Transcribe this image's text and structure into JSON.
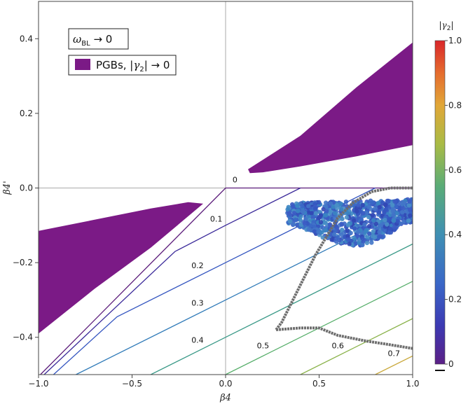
{
  "chart_data": {
    "type": "contour",
    "xlabel": "β4",
    "ylabel": "β4'",
    "xlim": [
      -1.0,
      1.0
    ],
    "ylim": [
      -0.5,
      0.5
    ],
    "x_ticks": [
      "−1.0",
      "−0.5",
      "0.0",
      "0.5",
      "1.0"
    ],
    "x_tick_values": [
      -1.0,
      -0.5,
      0.0,
      0.5,
      1.0
    ],
    "y_ticks": [
      "−0.4",
      "−0.2",
      "0.0",
      "0.2",
      "0.4"
    ],
    "y_tick_values": [
      -0.4,
      -0.2,
      0.0,
      0.2,
      0.4
    ],
    "legend": {
      "box_label": "ω_BL → 0",
      "box_label_text": "ω",
      "box_label_sub": "BL",
      "box_label_rest": " → 0",
      "fill_label": "PGBs, |γ2| → 0",
      "fill_label_pre": "PGBs, |",
      "fill_label_gamma": "γ",
      "fill_label_sub": "2",
      "fill_label_post": "| → 0",
      "placement": "top-left"
    },
    "colorbar": {
      "title": "|γ2|",
      "title_gamma": "γ",
      "title_sub": "2",
      "range": [
        0,
        1
      ],
      "ticks": [
        "0",
        "0.2",
        "0.4",
        "0.6",
        "0.8",
        "1.0"
      ],
      "tick_values": [
        0,
        0.2,
        0.4,
        0.6,
        0.8,
        1.0
      ]
    },
    "contours": [
      {
        "level": "0",
        "value": 0.0,
        "color": "#5a1a7a",
        "points": [
          [
            -0.99,
            -0.5
          ],
          [
            -0.0,
            0.0
          ],
          [
            0.4,
            0.0
          ],
          [
            1.0,
            0.0
          ]
        ],
        "label_at": [
          0.05,
          0.015
        ]
      },
      {
        "level": "0.1",
        "value": 0.1,
        "color": "#3b2a9a",
        "points": [
          [
            -0.97,
            -0.5
          ],
          [
            -0.27,
            -0.17
          ],
          [
            0.0,
            -0.1
          ],
          [
            0.4,
            0.0
          ]
        ],
        "label_at": [
          -0.05,
          -0.09
        ]
      },
      {
        "level": "0.2",
        "value": 0.2,
        "color": "#3556c0",
        "points": [
          [
            -0.92,
            -0.5
          ],
          [
            -0.58,
            -0.345
          ],
          [
            0.0,
            -0.2
          ],
          [
            0.8,
            0.0
          ]
        ],
        "label_at": [
          -0.15,
          -0.215
        ]
      },
      {
        "level": "0.3",
        "value": 0.3,
        "color": "#2f7ab8",
        "points": [
          [
            -0.8,
            -0.5
          ],
          [
            0.0,
            -0.3
          ],
          [
            1.0,
            -0.05
          ]
        ],
        "label_at": [
          -0.15,
          -0.315
        ]
      },
      {
        "level": "0.4",
        "value": 0.4,
        "color": "#3b9a88",
        "points": [
          [
            -0.4,
            -0.5
          ],
          [
            0.0,
            -0.4
          ],
          [
            1.0,
            -0.15
          ]
        ],
        "label_at": [
          -0.15,
          -0.415
        ]
      },
      {
        "level": "0.5",
        "value": 0.5,
        "color": "#56ae6a",
        "points": [
          [
            0.0,
            -0.5
          ],
          [
            1.0,
            -0.25
          ]
        ],
        "label_at": [
          0.2,
          -0.43
        ]
      },
      {
        "level": "0.6",
        "value": 0.6,
        "color": "#8ab24a",
        "points": [
          [
            0.4,
            -0.5
          ],
          [
            1.0,
            -0.35
          ]
        ],
        "label_at": [
          0.6,
          -0.43
        ]
      },
      {
        "level": "0.7",
        "value": 0.7,
        "color": "#c9a83a",
        "points": [
          [
            0.8,
            -0.5
          ],
          [
            1.0,
            -0.45
          ]
        ],
        "label_at": [
          0.9,
          -0.45
        ]
      }
    ],
    "pgb_regions": [
      {
        "name": "upper-right",
        "points": [
          [
            0.12,
            0.05
          ],
          [
            0.4,
            0.14
          ],
          [
            0.7,
            0.27
          ],
          [
            1.0,
            0.39
          ],
          [
            1.0,
            0.115
          ],
          [
            0.7,
            0.085
          ],
          [
            0.4,
            0.058
          ],
          [
            0.2,
            0.042
          ],
          [
            0.13,
            0.04
          ]
        ]
      },
      {
        "name": "lower-left",
        "points": [
          [
            -1.0,
            -0.115
          ],
          [
            -0.7,
            -0.085
          ],
          [
            -0.4,
            -0.055
          ],
          [
            -0.2,
            -0.038
          ],
          [
            -0.12,
            -0.042
          ],
          [
            -0.4,
            -0.16
          ],
          [
            -0.7,
            -0.27
          ],
          [
            -1.0,
            -0.39
          ]
        ]
      }
    ],
    "scatter_cluster": {
      "x_range": [
        0.33,
        1.0
      ],
      "y_range": [
        -0.16,
        -0.03
      ],
      "color_value_range": [
        0.1,
        0.3
      ]
    },
    "gray_curve": [
      [
        0.27,
        -0.38
      ],
      [
        0.3,
        -0.36
      ],
      [
        0.36,
        -0.3
      ],
      [
        0.42,
        -0.24
      ],
      [
        0.48,
        -0.18
      ],
      [
        0.54,
        -0.13
      ],
      [
        0.6,
        -0.08
      ],
      [
        0.68,
        -0.04
      ],
      [
        0.78,
        -0.01
      ],
      [
        0.88,
        0.0
      ],
      [
        1.0,
        0.0
      ]
    ],
    "gray_curve2": [
      [
        0.27,
        -0.38
      ],
      [
        0.4,
        -0.375
      ],
      [
        0.5,
        -0.375
      ],
      [
        0.6,
        -0.395
      ],
      [
        0.75,
        -0.41
      ],
      [
        0.88,
        -0.42
      ],
      [
        1.0,
        -0.43
      ]
    ]
  }
}
